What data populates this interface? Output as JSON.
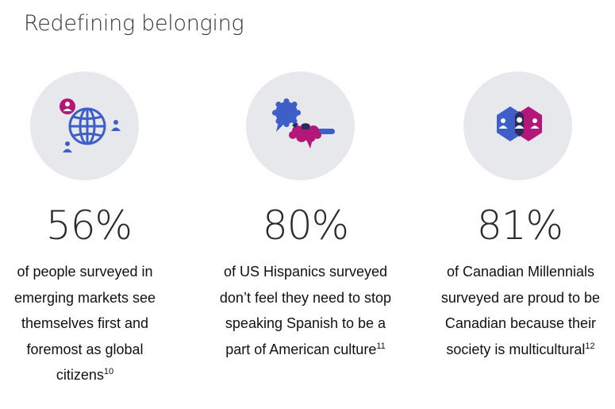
{
  "title": "Redefining belonging",
  "stats": [
    {
      "percent": "56%",
      "line1": "of people surveyed in",
      "line2": "emerging markets see",
      "line3": "themselves first and",
      "line4": "foremost as global",
      "line5": "citizens",
      "footnote": "10",
      "icon": "globe-people-icon"
    },
    {
      "percent": "80%",
      "line1": "of US Hispanics surveyed",
      "line2": "don’t feel they need to stop",
      "line3": "speaking Spanish to be a",
      "line4": "part of American culture",
      "footnote": "11",
      "icon": "speech-bubbles-icon"
    },
    {
      "percent": "81%",
      "line1": "of Canadian Millennials",
      "line2": "surveyed are proud to be",
      "line3": "Canadian because their",
      "line4": "society is multicultural",
      "footnote": "12",
      "icon": "hexagon-people-icon"
    }
  ],
  "colors": {
    "blue": "#3f5fc8",
    "magenta": "#b3177a",
    "navy": "#2a2a5e",
    "circle_bg": "#e7e8ec"
  }
}
